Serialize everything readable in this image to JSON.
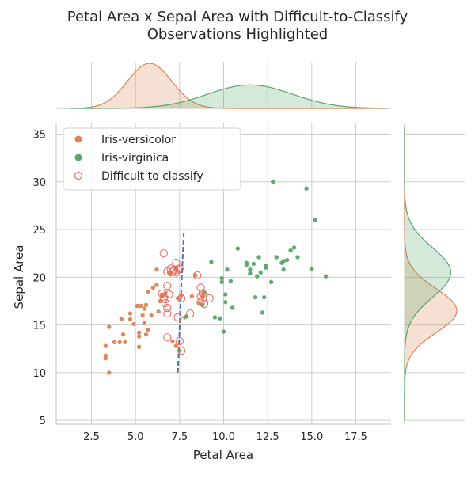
{
  "chart_data": {
    "type": "scatter",
    "title": "Petal Area x Sepal Area with Difficult-to-Classify\nObservations Highlighted",
    "xlabel": "Petal Area",
    "ylabel": "Sepal Area",
    "xlim": [
      0.5,
      19.5
    ],
    "ylim": [
      4.6,
      36.2
    ],
    "xticks": [
      "2.5",
      "5.0",
      "7.5",
      "10.0",
      "12.5",
      "15.0",
      "17.5"
    ],
    "yticks": [
      "5",
      "10",
      "15",
      "20",
      "25",
      "30",
      "35"
    ],
    "grid": true,
    "legend_position": "top-left",
    "legend": [
      "Iris-versicolor",
      "Iris-virginica",
      "Difficult to classify"
    ],
    "colors": {
      "versicolor": "#dd8452",
      "virginica": "#55a868",
      "difficult": "#e86a5c",
      "boundary": "#4c72b0"
    },
    "series": [
      {
        "name": "Iris-versicolor",
        "points": [
          [
            3.3,
            12.8
          ],
          [
            3.3,
            11.8
          ],
          [
            3.3,
            11.5
          ],
          [
            3.5,
            14.8
          ],
          [
            3.5,
            10.0
          ],
          [
            3.8,
            13.2
          ],
          [
            4.1,
            13.2
          ],
          [
            4.2,
            15.6
          ],
          [
            4.4,
            13.2
          ],
          [
            4.3,
            14.0
          ],
          [
            4.7,
            15.6
          ],
          [
            4.7,
            16.2
          ],
          [
            4.9,
            15.1
          ],
          [
            5.1,
            17.0
          ],
          [
            5.3,
            17.0
          ],
          [
            5.2,
            14.2
          ],
          [
            5.2,
            13.8
          ],
          [
            5.2,
            12.7
          ],
          [
            5.4,
            16.0
          ],
          [
            5.5,
            16.7
          ],
          [
            5.5,
            15.2
          ],
          [
            5.6,
            14.0
          ],
          [
            5.6,
            17.1
          ],
          [
            5.7,
            18.5
          ],
          [
            5.7,
            14.5
          ],
          [
            5.9,
            16.0
          ],
          [
            6.0,
            18.9
          ],
          [
            6.2,
            19.2
          ],
          [
            6.2,
            20.8
          ],
          [
            6.3,
            16.4
          ],
          [
            6.4,
            17.5
          ],
          [
            6.5,
            18.0
          ],
          [
            6.7,
            18.3
          ],
          [
            6.5,
            18.2
          ],
          [
            6.9,
            20.5
          ],
          [
            7.0,
            20.3
          ],
          [
            7.3,
            21.0
          ],
          [
            7.4,
            17.8
          ],
          [
            7.6,
            18.1
          ],
          [
            7.8,
            15.8
          ],
          [
            8.2,
            18.0
          ],
          [
            8.4,
            20.2
          ],
          [
            8.6,
            17.3
          ],
          [
            8.8,
            18.1
          ],
          [
            7.3,
            12.8
          ],
          [
            7.1,
            13.3
          ]
        ]
      },
      {
        "name": "Iris-virginica",
        "points": [
          [
            7.5,
            12.3
          ],
          [
            7.9,
            15.9
          ],
          [
            8.8,
            17.1
          ],
          [
            8.9,
            18.4
          ],
          [
            9.3,
            21.6
          ],
          [
            9.5,
            15.8
          ],
          [
            9.8,
            15.7
          ],
          [
            9.9,
            19.5
          ],
          [
            9.9,
            19.9
          ],
          [
            10.0,
            14.3
          ],
          [
            10.1,
            18.2
          ],
          [
            10.1,
            17.4
          ],
          [
            10.2,
            20.8
          ],
          [
            10.4,
            19.6
          ],
          [
            10.5,
            16.8
          ],
          [
            10.8,
            23.0
          ],
          [
            11.3,
            21.3
          ],
          [
            11.3,
            21.5
          ],
          [
            11.5,
            20.4
          ],
          [
            11.5,
            20.8
          ],
          [
            11.7,
            21.4
          ],
          [
            11.8,
            17.9
          ],
          [
            11.9,
            20.1
          ],
          [
            12.0,
            22.1
          ],
          [
            12.1,
            20.5
          ],
          [
            12.2,
            16.3
          ],
          [
            12.3,
            17.9
          ],
          [
            12.4,
            21.0
          ],
          [
            12.4,
            21.2
          ],
          [
            12.7,
            19.5
          ],
          [
            12.8,
            30.0
          ],
          [
            13.0,
            22.1
          ],
          [
            13.3,
            21.5
          ],
          [
            13.4,
            20.8
          ],
          [
            13.4,
            21.7
          ],
          [
            13.6,
            21.8
          ],
          [
            13.8,
            22.8
          ],
          [
            14.0,
            23.1
          ],
          [
            14.2,
            22.1
          ],
          [
            14.7,
            29.3
          ],
          [
            15.0,
            20.9
          ],
          [
            15.2,
            26.0
          ],
          [
            15.8,
            20.1
          ]
        ]
      },
      {
        "name": "Difficult to classify",
        "points": [
          [
            6.5,
            18.3
          ],
          [
            6.6,
            17.8
          ],
          [
            6.6,
            22.5
          ],
          [
            6.7,
            17.7
          ],
          [
            6.7,
            17.3
          ],
          [
            6.8,
            20.6
          ],
          [
            6.8,
            19.1
          ],
          [
            6.8,
            16.8
          ],
          [
            6.8,
            16.2
          ],
          [
            6.8,
            13.7
          ],
          [
            6.9,
            18.2
          ],
          [
            7.0,
            20.9
          ],
          [
            7.1,
            20.6
          ],
          [
            7.2,
            20.8
          ],
          [
            7.3,
            20.5
          ],
          [
            7.3,
            21.5
          ],
          [
            7.4,
            20.8
          ],
          [
            7.4,
            15.8
          ],
          [
            7.5,
            20.9
          ],
          [
            7.5,
            13.3
          ],
          [
            7.6,
            17.8
          ],
          [
            7.6,
            12.3
          ],
          [
            8.1,
            16.2
          ],
          [
            8.5,
            20.2
          ],
          [
            8.7,
            18.9
          ],
          [
            8.7,
            18.0
          ],
          [
            8.7,
            17.4
          ],
          [
            8.8,
            18.3
          ],
          [
            8.9,
            17.2
          ],
          [
            9.2,
            17.8
          ]
        ]
      }
    ],
    "decision_boundary": {
      "name": "boundary",
      "points": [
        [
          7.4,
          10.0
        ],
        [
          7.47,
          13.0
        ],
        [
          7.55,
          17.0
        ],
        [
          7.65,
          21.0
        ],
        [
          7.75,
          25.0
        ]
      ]
    },
    "marginals": {
      "x": {
        "versicolor": {
          "mean": 5.8,
          "sd": 1.25
        },
        "virginica": {
          "mean": 11.5,
          "sd": 2.4
        }
      },
      "y": {
        "versicolor": {
          "mean": 16.5,
          "sd": 2.3
        },
        "virginica": {
          "mean": 20.5,
          "sd": 2.6
        }
      }
    }
  }
}
